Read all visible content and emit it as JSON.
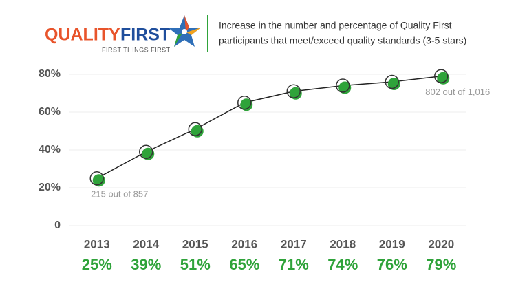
{
  "logo": {
    "words": [
      "QUALITY",
      "FIRST"
    ],
    "tagline": "FIRST THINGS FIRST"
  },
  "chart_data": {
    "type": "line",
    "title": [
      "Increase in the number and percentage of Quality First",
      "participants that meet/exceed quality standards (3-5 stars)"
    ],
    "categories": [
      "2013",
      "2014",
      "2015",
      "2016",
      "2017",
      "2018",
      "2019",
      "2020"
    ],
    "values": [
      25,
      39,
      51,
      65,
      71,
      74,
      76,
      79
    ],
    "value_labels": [
      "25%",
      "39%",
      "51%",
      "65%",
      "71%",
      "74%",
      "76%",
      "79%"
    ],
    "color": "#2fa33a",
    "line_color": "#222222",
    "ylim": [
      0,
      80
    ],
    "yticks": [
      0,
      {
        "value": 20,
        "label": "20%"
      },
      {
        "value": 40,
        "label": "40%"
      },
      {
        "value": 60,
        "label": "60%"
      },
      {
        "value": 80,
        "label": "80%"
      }
    ],
    "grid": true,
    "annotations": [
      {
        "text": "215 out of 857",
        "index": 0
      },
      {
        "text": "802 out of 1,016",
        "index": 7
      }
    ]
  }
}
